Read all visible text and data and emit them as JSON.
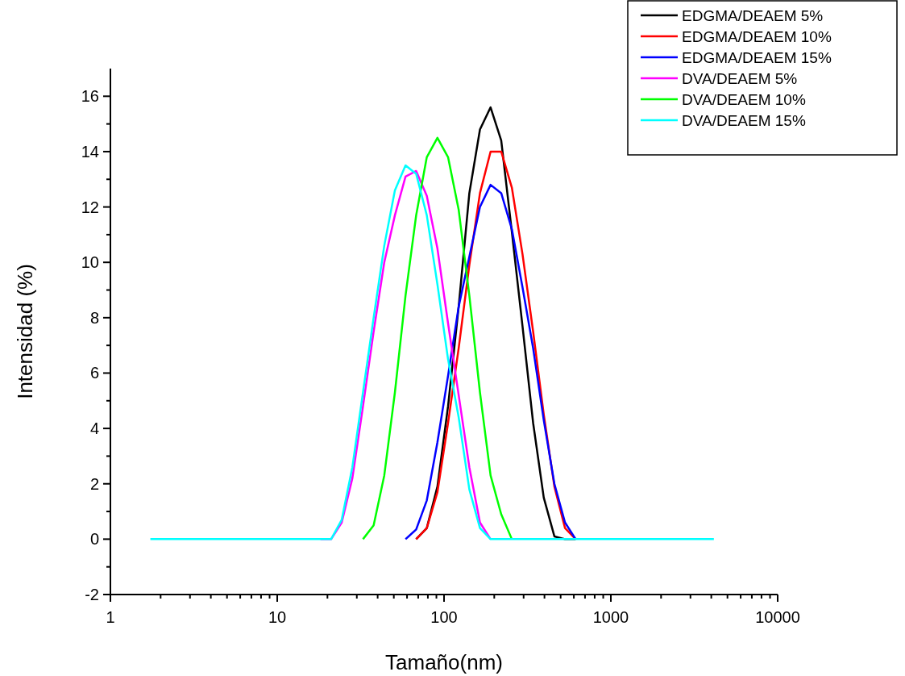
{
  "chart_data": {
    "type": "line",
    "xlabel": "Tamaño(nm)",
    "ylabel": "Intensidad (%)",
    "log": "x",
    "legend": "top right",
    "grid": false,
    "marker": "none",
    "line_style": "solid",
    "x": [
      1.736,
      18.17,
      21.04,
      24.36,
      28.21,
      32.67,
      37.84,
      43.82,
      50.75,
      58.77,
      68.06,
      78.82,
      91.28,
      105.7,
      122.4,
      141.8,
      164.2,
      190.1,
      220.2,
      255,
      295.3,
      342,
      396.1,
      458.7,
      531.2,
      615.1,
      712.4,
      4145
    ],
    "xlim": [
      1,
      10000
    ],
    "ylim": [
      -2,
      17
    ],
    "xticks": [
      1,
      {
        "value": 2,
        "label": null
      },
      {
        "value": 3,
        "label": null
      },
      {
        "value": 4,
        "label": null
      },
      {
        "value": 5,
        "label": null
      },
      {
        "value": 6,
        "label": null
      },
      {
        "value": 7,
        "label": null
      },
      {
        "value": 8,
        "label": null
      },
      {
        "value": 9,
        "label": null
      },
      10,
      {
        "value": 20,
        "label": null
      },
      {
        "value": 30,
        "label": null
      },
      {
        "value": 40,
        "label": null
      },
      {
        "value": 50,
        "label": null
      },
      {
        "value": 60,
        "label": null
      },
      {
        "value": 70,
        "label": null
      },
      {
        "value": 80,
        "label": null
      },
      {
        "value": 90,
        "label": null
      },
      100,
      {
        "value": 200,
        "label": null
      },
      {
        "value": 300,
        "label": null
      },
      {
        "value": 400,
        "label": null
      },
      {
        "value": 500,
        "label": null
      },
      {
        "value": 600,
        "label": null
      },
      {
        "value": 700,
        "label": null
      },
      {
        "value": 800,
        "label": null
      },
      {
        "value": 900,
        "label": null
      },
      1000,
      {
        "value": 2000,
        "label": null
      },
      {
        "value": 3000,
        "label": null
      },
      {
        "value": 4000,
        "label": null
      },
      {
        "value": 5000,
        "label": null
      },
      {
        "value": 6000,
        "label": null
      },
      {
        "value": 7000,
        "label": null
      },
      {
        "value": 8000,
        "label": null
      },
      {
        "value": 9000,
        "label": null
      },
      10000
    ],
    "yticks": [
      -2,
      {
        "value": -1,
        "label": null
      },
      0,
      {
        "value": 1,
        "label": null
      },
      2,
      {
        "value": 3,
        "label": null
      },
      4,
      {
        "value": 5,
        "label": null
      },
      6,
      {
        "value": 7,
        "label": null
      },
      8,
      {
        "value": 9,
        "label": null
      },
      10,
      {
        "value": 11,
        "label": null
      },
      12,
      {
        "value": 13,
        "label": null
      },
      14,
      {
        "value": 15,
        "label": null
      },
      16
    ],
    "series": [
      {
        "name": "EDGMA/DEAEM 5%",
        "color": "#000000",
        "values": [
          null,
          null,
          null,
          null,
          null,
          null,
          null,
          null,
          null,
          null,
          0,
          0.4,
          1.9,
          4.8,
          8.4,
          12.5,
          14.8,
          15.6,
          14.4,
          11.1,
          7.7,
          4.2,
          1.5,
          0.1,
          0,
          0,
          null,
          null
        ]
      },
      {
        "name": "EDGMA/DEAEM 10%",
        "color": "#ff0000",
        "values": [
          null,
          null,
          null,
          null,
          null,
          null,
          null,
          null,
          null,
          null,
          0,
          0.4,
          1.7,
          4.2,
          6.9,
          9.9,
          12.5,
          14.0,
          14.0,
          12.7,
          10.3,
          7.5,
          4.5,
          1.9,
          0.4,
          0,
          null,
          null
        ]
      },
      {
        "name": "EDGMA/DEAEM 15%",
        "color": "#0000ff",
        "values": [
          null,
          null,
          null,
          null,
          null,
          null,
          null,
          null,
          null,
          0,
          0.35,
          1.4,
          3.5,
          5.9,
          8.4,
          10.2,
          12.0,
          12.8,
          12.5,
          11.2,
          9.1,
          6.9,
          4.3,
          2.0,
          0.6,
          0,
          null,
          null
        ]
      },
      {
        "name": "DVA/DEAEM 5%",
        "color": "#ff00ff",
        "values": [
          null,
          0,
          0,
          0.6,
          2.2,
          4.8,
          7.5,
          10.0,
          11.7,
          13.1,
          13.3,
          12.4,
          10.5,
          7.8,
          5.2,
          2.6,
          0.6,
          0,
          null,
          null,
          null,
          null,
          null,
          null,
          null,
          null,
          null,
          null
        ]
      },
      {
        "name": "DVA/DEAEM 10%",
        "color": "#00ff00",
        "values": [
          null,
          null,
          null,
          null,
          null,
          0,
          0.5,
          2.3,
          5.3,
          8.8,
          11.7,
          13.8,
          14.5,
          13.8,
          11.9,
          8.8,
          5.3,
          2.3,
          0.9,
          0,
          null,
          null,
          null,
          null,
          null,
          null,
          null,
          null
        ]
      },
      {
        "name": "DVA/DEAEM 15%",
        "color": "#00ffff",
        "values": [
          0,
          0,
          0,
          0.7,
          2.6,
          5.3,
          8.0,
          10.6,
          12.6,
          13.5,
          13.2,
          11.7,
          9.2,
          6.5,
          4.4,
          1.8,
          0.4,
          0,
          0,
          0,
          0,
          0,
          0,
          0,
          0,
          0,
          0,
          0
        ]
      }
    ]
  }
}
